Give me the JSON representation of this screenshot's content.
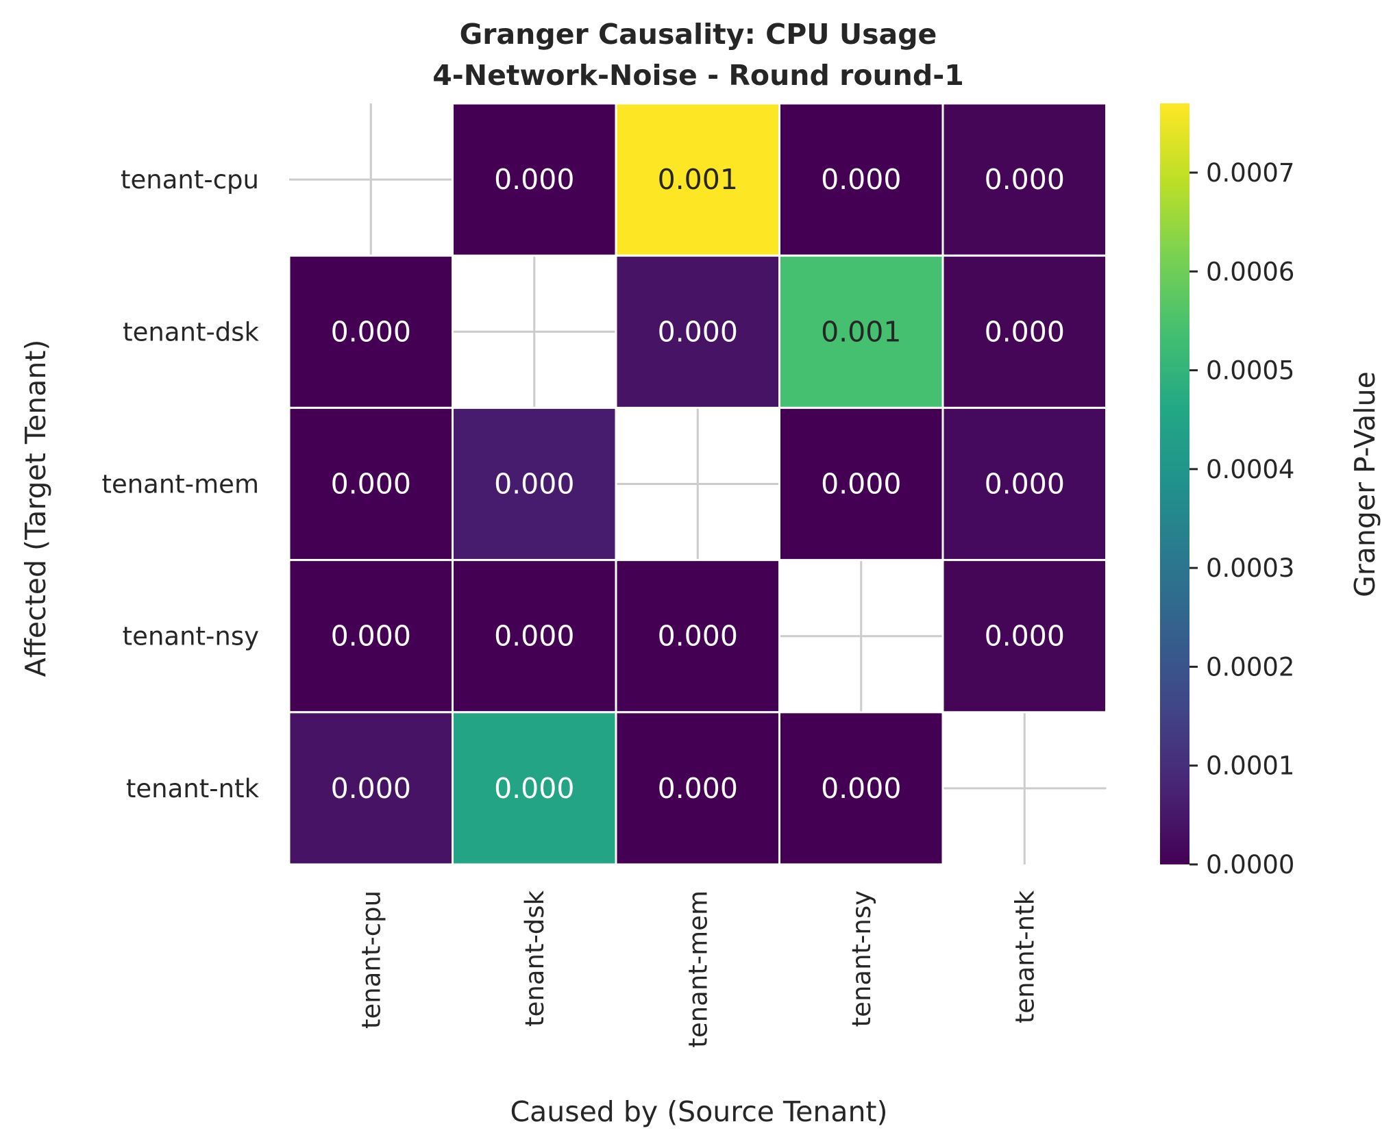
{
  "chart_data": {
    "type": "heatmap",
    "title": "Granger Causality: CPU Usage",
    "subtitle": "4-Network-Noise - Round round-1",
    "xlabel": "Caused by (Source Tenant)",
    "ylabel": "Affected (Target Tenant)",
    "x_categories": [
      "tenant-cpu",
      "tenant-dsk",
      "tenant-mem",
      "tenant-nsy",
      "tenant-ntk"
    ],
    "y_categories": [
      "tenant-cpu",
      "tenant-dsk",
      "tenant-mem",
      "tenant-nsy",
      "tenant-ntk"
    ],
    "values": [
      [
        null,
        0.0,
        0.00077,
        0.0,
        1e-05
      ],
      [
        0.0,
        null,
        4e-05,
        0.00054,
        1e-05
      ],
      [
        0.0,
        6e-05,
        null,
        0.0,
        2e-05
      ],
      [
        0.0,
        0.0,
        0.0,
        null,
        1e-05
      ],
      [
        4e-05,
        0.00045,
        0.0,
        0.0,
        null
      ]
    ],
    "annotations": [
      [
        null,
        "0.000",
        "0.001",
        "0.000",
        "0.000"
      ],
      [
        "0.000",
        null,
        "0.000",
        "0.001",
        "0.000"
      ],
      [
        "0.000",
        "0.000",
        null,
        "0.000",
        "0.000"
      ],
      [
        "0.000",
        "0.000",
        "0.000",
        null,
        "0.000"
      ],
      [
        "0.000",
        "0.000",
        "0.000",
        "0.000",
        null
      ]
    ],
    "colormap": "viridis",
    "vmin": 0.0,
    "vmax": 0.00077,
    "colorbar": {
      "label": "Granger P-Value",
      "ticks": [
        0.0,
        0.0001,
        0.0002,
        0.0003,
        0.0004,
        0.0005,
        0.0006,
        0.0007
      ],
      "tick_labels": [
        "0.0000",
        "0.0001",
        "0.0002",
        "0.0003",
        "0.0004",
        "0.0005",
        "0.0006",
        "0.0007"
      ]
    },
    "grid": true
  }
}
